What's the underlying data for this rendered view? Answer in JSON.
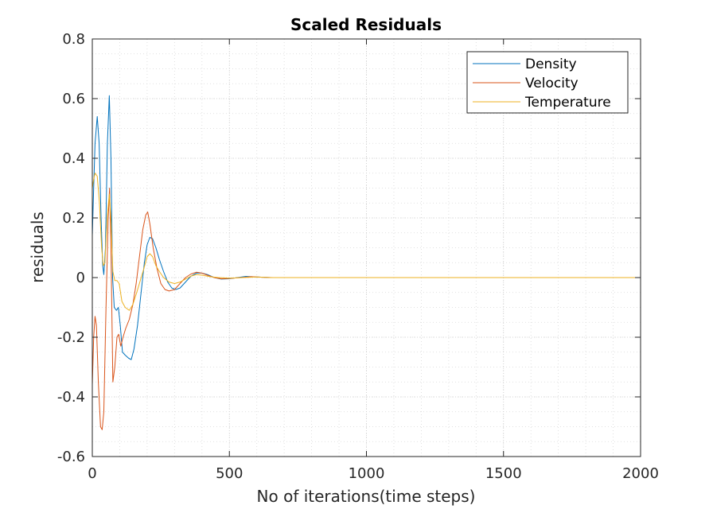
{
  "chart_data": {
    "type": "line",
    "title": "Scaled Residuals",
    "xlabel": "No of iterations(time steps)",
    "ylabel": "residuals",
    "xlim": [
      0,
      2000
    ],
    "ylim": [
      -0.6,
      0.8
    ],
    "xticks": [
      0,
      500,
      1000,
      1500,
      2000
    ],
    "xtick_labels": [
      "0",
      "500",
      "1000",
      "1500",
      "2000"
    ],
    "yticks": [
      -0.6,
      -0.4,
      -0.2,
      0,
      0.2,
      0.4,
      0.6,
      0.8
    ],
    "ytick_labels": [
      "-0.6",
      "-0.4",
      "-0.2",
      "0",
      "0.2",
      "0.4",
      "0.6",
      "0.8"
    ],
    "grid": true,
    "minor_grid": true,
    "legend_position": "top-right",
    "series": [
      {
        "name": "Density",
        "color": "#0072BD",
        "points": [
          [
            0,
            0.14
          ],
          [
            5,
            0.3
          ],
          [
            10,
            0.45
          ],
          [
            18,
            0.54
          ],
          [
            25,
            0.45
          ],
          [
            32,
            0.2
          ],
          [
            38,
            0.04
          ],
          [
            42,
            0.01
          ],
          [
            48,
            0.1
          ],
          [
            55,
            0.45
          ],
          [
            62,
            0.61
          ],
          [
            68,
            0.4
          ],
          [
            74,
            0.0
          ],
          [
            80,
            -0.1
          ],
          [
            88,
            -0.11
          ],
          [
            95,
            -0.1
          ],
          [
            102,
            -0.16
          ],
          [
            110,
            -0.25
          ],
          [
            120,
            -0.26
          ],
          [
            132,
            -0.27
          ],
          [
            142,
            -0.275
          ],
          [
            152,
            -0.24
          ],
          [
            165,
            -0.16
          ],
          [
            178,
            -0.05
          ],
          [
            190,
            0.05
          ],
          [
            200,
            0.11
          ],
          [
            210,
            0.135
          ],
          [
            220,
            0.13
          ],
          [
            232,
            0.1
          ],
          [
            245,
            0.06
          ],
          [
            260,
            0.02
          ],
          [
            275,
            -0.015
          ],
          [
            290,
            -0.035
          ],
          [
            305,
            -0.04
          ],
          [
            320,
            -0.035
          ],
          [
            340,
            -0.015
          ],
          [
            360,
            0.005
          ],
          [
            380,
            0.015
          ],
          [
            400,
            0.015
          ],
          [
            420,
            0.01
          ],
          [
            445,
            0.0
          ],
          [
            470,
            -0.005
          ],
          [
            500,
            -0.004
          ],
          [
            530,
            0.0
          ],
          [
            560,
            0.004
          ],
          [
            600,
            0.002
          ],
          [
            650,
            0.0
          ],
          [
            700,
            0.0
          ],
          [
            750,
            0.0
          ],
          [
            2000,
            0.0
          ]
        ]
      },
      {
        "name": "Velocity",
        "color": "#D95319",
        "points": [
          [
            0,
            -0.36
          ],
          [
            5,
            -0.2
          ],
          [
            10,
            -0.13
          ],
          [
            15,
            -0.16
          ],
          [
            22,
            -0.35
          ],
          [
            30,
            -0.5
          ],
          [
            36,
            -0.51
          ],
          [
            42,
            -0.45
          ],
          [
            50,
            -0.1
          ],
          [
            58,
            0.2
          ],
          [
            63,
            0.3
          ],
          [
            68,
            0.1
          ],
          [
            75,
            -0.35
          ],
          [
            82,
            -0.3
          ],
          [
            90,
            -0.2
          ],
          [
            96,
            -0.19
          ],
          [
            104,
            -0.23
          ],
          [
            112,
            -0.2
          ],
          [
            122,
            -0.17
          ],
          [
            135,
            -0.14
          ],
          [
            148,
            -0.09
          ],
          [
            160,
            -0.02
          ],
          [
            172,
            0.07
          ],
          [
            184,
            0.16
          ],
          [
            195,
            0.21
          ],
          [
            202,
            0.22
          ],
          [
            210,
            0.18
          ],
          [
            222,
            0.1
          ],
          [
            236,
            0.03
          ],
          [
            250,
            -0.02
          ],
          [
            265,
            -0.04
          ],
          [
            280,
            -0.045
          ],
          [
            300,
            -0.04
          ],
          [
            320,
            -0.02
          ],
          [
            340,
            0.0
          ],
          [
            360,
            0.012
          ],
          [
            380,
            0.018
          ],
          [
            400,
            0.015
          ],
          [
            420,
            0.008
          ],
          [
            445,
            0.0
          ],
          [
            470,
            -0.004
          ],
          [
            500,
            -0.003
          ],
          [
            540,
            0.0
          ],
          [
            580,
            0.003
          ],
          [
            620,
            0.001
          ],
          [
            660,
            0.0
          ],
          [
            750,
            0.0
          ],
          [
            2000,
            0.0
          ]
        ]
      },
      {
        "name": "Temperature",
        "color": "#EDB120",
        "points": [
          [
            0,
            0.3
          ],
          [
            5,
            0.33
          ],
          [
            10,
            0.35
          ],
          [
            18,
            0.34
          ],
          [
            26,
            0.25
          ],
          [
            34,
            0.1
          ],
          [
            40,
            0.04
          ],
          [
            46,
            0.05
          ],
          [
            54,
            0.2
          ],
          [
            62,
            0.28
          ],
          [
            68,
            0.2
          ],
          [
            75,
            0.02
          ],
          [
            82,
            -0.01
          ],
          [
            90,
            -0.01
          ],
          [
            98,
            -0.02
          ],
          [
            108,
            -0.08
          ],
          [
            120,
            -0.1
          ],
          [
            135,
            -0.11
          ],
          [
            148,
            -0.09
          ],
          [
            162,
            -0.05
          ],
          [
            175,
            -0.01
          ],
          [
            188,
            0.03
          ],
          [
            200,
            0.07
          ],
          [
            210,
            0.08
          ],
          [
            220,
            0.07
          ],
          [
            232,
            0.04
          ],
          [
            245,
            0.02
          ],
          [
            260,
            0.0
          ],
          [
            280,
            -0.015
          ],
          [
            300,
            -0.02
          ],
          [
            320,
            -0.015
          ],
          [
            340,
            -0.005
          ],
          [
            360,
            0.005
          ],
          [
            380,
            0.01
          ],
          [
            400,
            0.008
          ],
          [
            430,
            0.003
          ],
          [
            460,
            0.0
          ],
          [
            500,
            -0.002
          ],
          [
            550,
            0.0
          ],
          [
            600,
            0.002
          ],
          [
            650,
            0.0
          ],
          [
            750,
            0.0
          ],
          [
            2000,
            0.0
          ]
        ]
      }
    ]
  }
}
